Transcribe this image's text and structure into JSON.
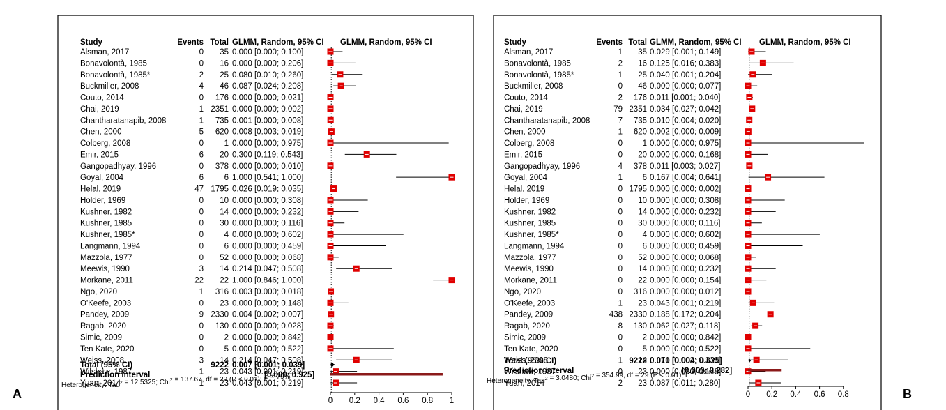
{
  "panels": [
    {
      "label": "A",
      "headers": {
        "study": "Study",
        "events": "Events",
        "total": "Total",
        "ci": "GLMM, Random, 95% CI",
        "plot": "GLMM, Random, 95% CI"
      },
      "studies": [
        {
          "study": "Alsman, 2017",
          "events": "0",
          "total": "35",
          "ci_text": "0.000 [0.000; 0.100]",
          "est": 0.0,
          "lo": 0.0,
          "hi": 0.1
        },
        {
          "study": "Bonavolontà, 1985",
          "events": "0",
          "total": "16",
          "ci_text": "0.000 [0.000; 0.206]",
          "est": 0.0,
          "lo": 0.0,
          "hi": 0.206
        },
        {
          "study": "Bonavolontà, 1985*",
          "events": "2",
          "total": "25",
          "ci_text": "0.080 [0.010; 0.260]",
          "est": 0.08,
          "lo": 0.01,
          "hi": 0.26
        },
        {
          "study": "Buckmiller, 2008",
          "events": "4",
          "total": "46",
          "ci_text": "0.087 [0.024; 0.208]",
          "est": 0.087,
          "lo": 0.024,
          "hi": 0.208
        },
        {
          "study": "Couto, 2014",
          "events": "0",
          "total": "176",
          "ci_text": "0.000 [0.000; 0.021]",
          "est": 0.0,
          "lo": 0.0,
          "hi": 0.021
        },
        {
          "study": "Chai, 2019",
          "events": "1",
          "total": "2351",
          "ci_text": "0.000 [0.000; 0.002]",
          "est": 0.0,
          "lo": 0.0,
          "hi": 0.002
        },
        {
          "study": "Chantharatanapib, 2008",
          "events": "1",
          "total": "735",
          "ci_text": "0.001 [0.000; 0.008]",
          "est": 0.001,
          "lo": 0.0,
          "hi": 0.008
        },
        {
          "study": "Chen, 2000",
          "events": "5",
          "total": "620",
          "ci_text": "0.008 [0.003; 0.019]",
          "est": 0.008,
          "lo": 0.003,
          "hi": 0.019
        },
        {
          "study": "Colberg, 2008",
          "events": "0",
          "total": "1",
          "ci_text": "0.000 [0.000; 0.975]",
          "est": 0.0,
          "lo": 0.0,
          "hi": 0.975
        },
        {
          "study": "Emir, 2015",
          "events": "6",
          "total": "20",
          "ci_text": "0.300 [0.119; 0.543]",
          "est": 0.3,
          "lo": 0.119,
          "hi": 0.543
        },
        {
          "study": "Gangopadhyay, 1996",
          "events": "0",
          "total": "378",
          "ci_text": "0.000 [0.000; 0.010]",
          "est": 0.0,
          "lo": 0.0,
          "hi": 0.01
        },
        {
          "study": "Goyal, 2004",
          "events": "6",
          "total": "6",
          "ci_text": "1.000 [0.541; 1.000]",
          "est": 1.0,
          "lo": 0.541,
          "hi": 1.0
        },
        {
          "study": "Helal, 2019",
          "events": "47",
          "total": "1795",
          "ci_text": "0.026 [0.019; 0.035]",
          "est": 0.026,
          "lo": 0.019,
          "hi": 0.035
        },
        {
          "study": "Holder, 1969",
          "events": "0",
          "total": "10",
          "ci_text": "0.000 [0.000; 0.308]",
          "est": 0.0,
          "lo": 0.0,
          "hi": 0.308
        },
        {
          "study": "Kushner, 1982",
          "events": "0",
          "total": "14",
          "ci_text": "0.000 [0.000; 0.232]",
          "est": 0.0,
          "lo": 0.0,
          "hi": 0.232
        },
        {
          "study": "Kushner, 1985",
          "events": "0",
          "total": "30",
          "ci_text": "0.000 [0.000; 0.116]",
          "est": 0.0,
          "lo": 0.0,
          "hi": 0.116
        },
        {
          "study": "Kushner, 1985*",
          "events": "0",
          "total": "4",
          "ci_text": "0.000 [0.000; 0.602]",
          "est": 0.0,
          "lo": 0.0,
          "hi": 0.602
        },
        {
          "study": "Langmann, 1994",
          "events": "0",
          "total": "6",
          "ci_text": "0.000 [0.000; 0.459]",
          "est": 0.0,
          "lo": 0.0,
          "hi": 0.459
        },
        {
          "study": "Mazzola, 1977",
          "events": "0",
          "total": "52",
          "ci_text": "0.000 [0.000; 0.068]",
          "est": 0.0,
          "lo": 0.0,
          "hi": 0.068
        },
        {
          "study": "Meewis, 1990",
          "events": "3",
          "total": "14",
          "ci_text": "0.214 [0.047; 0.508]",
          "est": 0.214,
          "lo": 0.047,
          "hi": 0.508
        },
        {
          "study": "Morkane, 2011",
          "events": "22",
          "total": "22",
          "ci_text": "1.000 [0.846; 1.000]",
          "est": 1.0,
          "lo": 0.846,
          "hi": 1.0
        },
        {
          "study": "Ngo, 2020",
          "events": "1",
          "total": "316",
          "ci_text": "0.003 [0.000; 0.018]",
          "est": 0.003,
          "lo": 0.0,
          "hi": 0.018
        },
        {
          "study": "O'Keefe, 2003",
          "events": "0",
          "total": "23",
          "ci_text": "0.000 [0.000; 0.148]",
          "est": 0.0,
          "lo": 0.0,
          "hi": 0.148
        },
        {
          "study": "Pandey, 2009",
          "events": "9",
          "total": "2330",
          "ci_text": "0.004 [0.002; 0.007]",
          "est": 0.004,
          "lo": 0.002,
          "hi": 0.007
        },
        {
          "study": "Ragab, 2020",
          "events": "0",
          "total": "130",
          "ci_text": "0.000 [0.000; 0.028]",
          "est": 0.0,
          "lo": 0.0,
          "hi": 0.028
        },
        {
          "study": "Simic, 2009",
          "events": "0",
          "total": "2",
          "ci_text": "0.000 [0.000; 0.842]",
          "est": 0.0,
          "lo": 0.0,
          "hi": 0.842
        },
        {
          "study": "Ten Kate, 2020",
          "events": "0",
          "total": "5",
          "ci_text": "0.000 [0.000; 0.522]",
          "est": 0.0,
          "lo": 0.0,
          "hi": 0.522
        },
        {
          "study": "Weiss, 2008",
          "events": "3",
          "total": "14",
          "ci_text": "0.214 [0.047; 0.508]",
          "est": 0.214,
          "lo": 0.047,
          "hi": 0.508
        },
        {
          "study": "Wilshaw, 1987",
          "events": "1",
          "total": "23",
          "ci_text": "0.043 [0.001; 0.219]",
          "est": 0.043,
          "lo": 0.001,
          "hi": 0.219
        },
        {
          "study": "Yuan, 2014",
          "events": "1",
          "total": "23",
          "ci_text": "0.043 [0.001; 0.219]",
          "est": 0.043,
          "lo": 0.001,
          "hi": 0.219
        }
      ],
      "total": {
        "label": "Total (95% CI)",
        "total": "9222",
        "ci_text": "0.007 [0.001; 0.039]",
        "est": 0.007,
        "lo": 0.001,
        "hi": 0.039
      },
      "prediction": {
        "label": "Prediction interval",
        "ci_text": "[0.000; 0.925]",
        "lo": 0.0,
        "hi": 0.925
      },
      "heterogeneity": {
        "prefix": "Heterogeneity: Tau",
        "tau_val": " = 12.5325; Chi",
        "chi_val": " = 137.67, df = 29 (P < 0.01); I",
        "i_val": " = 79%",
        "sup": "2"
      },
      "ticks": [
        "0",
        "0.2",
        "0.4",
        "0.6",
        "0.8",
        "1"
      ],
      "tick_values": [
        0,
        0.2,
        0.4,
        0.6,
        0.8,
        1.0
      ]
    },
    {
      "label": "B",
      "headers": {
        "study": "Study",
        "events": "Events",
        "total": "Total",
        "ci": "GLMM, Random, 95% CI",
        "plot": "GLMM, Random, 95% CI"
      },
      "studies": [
        {
          "study": "Alsman, 2017",
          "events": "1",
          "total": "35",
          "ci_text": "0.029 [0.001; 0.149]",
          "est": 0.029,
          "lo": 0.001,
          "hi": 0.149
        },
        {
          "study": "Bonavolontà, 1985",
          "events": "2",
          "total": "16",
          "ci_text": "0.125 [0.016; 0.383]",
          "est": 0.125,
          "lo": 0.016,
          "hi": 0.383
        },
        {
          "study": "Bonavolontà, 1985*",
          "events": "1",
          "total": "25",
          "ci_text": "0.040 [0.001; 0.204]",
          "est": 0.04,
          "lo": 0.001,
          "hi": 0.204
        },
        {
          "study": "Buckmiller, 2008",
          "events": "0",
          "total": "46",
          "ci_text": "0.000 [0.000; 0.077]",
          "est": 0.0,
          "lo": 0.0,
          "hi": 0.077
        },
        {
          "study": "Couto, 2014",
          "events": "2",
          "total": "176",
          "ci_text": "0.011 [0.001; 0.040]",
          "est": 0.011,
          "lo": 0.001,
          "hi": 0.04
        },
        {
          "study": "Chai, 2019",
          "events": "79",
          "total": "2351",
          "ci_text": "0.034 [0.027; 0.042]",
          "est": 0.034,
          "lo": 0.027,
          "hi": 0.042
        },
        {
          "study": "Chantharatanapib, 2008",
          "events": "7",
          "total": "735",
          "ci_text": "0.010 [0.004; 0.020]",
          "est": 0.01,
          "lo": 0.004,
          "hi": 0.02
        },
        {
          "study": "Chen, 2000",
          "events": "1",
          "total": "620",
          "ci_text": "0.002 [0.000; 0.009]",
          "est": 0.002,
          "lo": 0.0,
          "hi": 0.009
        },
        {
          "study": "Colberg, 2008",
          "events": "0",
          "total": "1",
          "ci_text": "0.000 [0.000; 0.975]",
          "est": 0.0,
          "lo": 0.0,
          "hi": 0.975
        },
        {
          "study": "Emir, 2015",
          "events": "0",
          "total": "20",
          "ci_text": "0.000 [0.000; 0.168]",
          "est": 0.0,
          "lo": 0.0,
          "hi": 0.168
        },
        {
          "study": "Gangopadhyay, 1996",
          "events": "4",
          "total": "378",
          "ci_text": "0.011 [0.003; 0.027]",
          "est": 0.011,
          "lo": 0.003,
          "hi": 0.027
        },
        {
          "study": "Goyal, 2004",
          "events": "1",
          "total": "6",
          "ci_text": "0.167 [0.004; 0.641]",
          "est": 0.167,
          "lo": 0.004,
          "hi": 0.641
        },
        {
          "study": "Helal, 2019",
          "events": "0",
          "total": "1795",
          "ci_text": "0.000 [0.000; 0.002]",
          "est": 0.0,
          "lo": 0.0,
          "hi": 0.002
        },
        {
          "study": "Holder, 1969",
          "events": "0",
          "total": "10",
          "ci_text": "0.000 [0.000; 0.308]",
          "est": 0.0,
          "lo": 0.0,
          "hi": 0.308
        },
        {
          "study": "Kushner, 1982",
          "events": "0",
          "total": "14",
          "ci_text": "0.000 [0.000; 0.232]",
          "est": 0.0,
          "lo": 0.0,
          "hi": 0.232
        },
        {
          "study": "Kushner, 1985",
          "events": "0",
          "total": "30",
          "ci_text": "0.000 [0.000; 0.116]",
          "est": 0.0,
          "lo": 0.0,
          "hi": 0.116
        },
        {
          "study": "Kushner, 1985*",
          "events": "0",
          "total": "4",
          "ci_text": "0.000 [0.000; 0.602]",
          "est": 0.0,
          "lo": 0.0,
          "hi": 0.602
        },
        {
          "study": "Langmann, 1994",
          "events": "0",
          "total": "6",
          "ci_text": "0.000 [0.000; 0.459]",
          "est": 0.0,
          "lo": 0.0,
          "hi": 0.459
        },
        {
          "study": "Mazzola, 1977",
          "events": "0",
          "total": "52",
          "ci_text": "0.000 [0.000; 0.068]",
          "est": 0.0,
          "lo": 0.0,
          "hi": 0.068
        },
        {
          "study": "Meewis, 1990",
          "events": "0",
          "total": "14",
          "ci_text": "0.000 [0.000; 0.232]",
          "est": 0.0,
          "lo": 0.0,
          "hi": 0.232
        },
        {
          "study": "Morkane, 2011",
          "events": "0",
          "total": "22",
          "ci_text": "0.000 [0.000; 0.154]",
          "est": 0.0,
          "lo": 0.0,
          "hi": 0.154
        },
        {
          "study": "Ngo, 2020",
          "events": "0",
          "total": "316",
          "ci_text": "0.000 [0.000; 0.012]",
          "est": 0.0,
          "lo": 0.0,
          "hi": 0.012
        },
        {
          "study": "O'Keefe, 2003",
          "events": "1",
          "total": "23",
          "ci_text": "0.043 [0.001; 0.219]",
          "est": 0.043,
          "lo": 0.001,
          "hi": 0.219
        },
        {
          "study": "Pandey, 2009",
          "events": "438",
          "total": "2330",
          "ci_text": "0.188 [0.172; 0.204]",
          "est": 0.188,
          "lo": 0.172,
          "hi": 0.204
        },
        {
          "study": "Ragab, 2020",
          "events": "8",
          "total": "130",
          "ci_text": "0.062 [0.027; 0.118]",
          "est": 0.062,
          "lo": 0.027,
          "hi": 0.118
        },
        {
          "study": "Simic, 2009",
          "events": "0",
          "total": "2",
          "ci_text": "0.000 [0.000; 0.842]",
          "est": 0.0,
          "lo": 0.0,
          "hi": 0.842
        },
        {
          "study": "Ten Kate, 2020",
          "events": "0",
          "total": "5",
          "ci_text": "0.000 [0.000; 0.522]",
          "est": 0.0,
          "lo": 0.0,
          "hi": 0.522
        },
        {
          "study": "Weiss, 2008",
          "events": "1",
          "total": "14",
          "ci_text": "0.071 [0.002; 0.339]",
          "est": 0.071,
          "lo": 0.002,
          "hi": 0.339
        },
        {
          "study": "Wilshaw, 1987",
          "events": "0",
          "total": "23",
          "ci_text": "0.000 [0.000; 0.148]",
          "est": 0.0,
          "lo": 0.0,
          "hi": 0.148
        },
        {
          "study": "Yuan, 2014",
          "events": "2",
          "total": "23",
          "ci_text": "0.087 [0.011; 0.280]",
          "est": 0.087,
          "lo": 0.011,
          "hi": 0.28
        }
      ],
      "total": {
        "label": "Total (95% CI)",
        "total": "9222",
        "ci_text": "0.010 [0.004; 0.025]",
        "est": 0.01,
        "lo": 0.004,
        "hi": 0.025
      },
      "prediction": {
        "label": "Prediction interval",
        "ci_text": "[0.000; 0.282]",
        "lo": 0.0,
        "hi": 0.282
      },
      "heterogeneity": {
        "prefix": "Heterogeneity: Tau",
        "tau_val": " = 3.0480; Chi",
        "chi_val": " = 354.99, df = 29 (P < 0.01); I",
        "i_val": " = 92%",
        "sup": "2"
      },
      "ticks": [
        "0",
        "0.2",
        "0.4",
        "0.6",
        "0.8"
      ],
      "tick_values": [
        0,
        0.2,
        0.4,
        0.6,
        0.8
      ]
    }
  ],
  "colors": {
    "marker": "#e00000",
    "prediction_bar": "#8b1a1a",
    "line": "#000000"
  },
  "chart_data": [
    {
      "type": "forest",
      "panel": "A",
      "xlim": [
        0,
        1
      ],
      "reference_line": 0.007,
      "xticks": [
        0,
        0.2,
        0.4,
        0.6,
        0.8,
        1.0
      ]
    },
    {
      "type": "forest",
      "panel": "B",
      "xlim": [
        0,
        1
      ],
      "reference_line": 0.01,
      "xticks": [
        0,
        0.2,
        0.4,
        0.6,
        0.8
      ]
    }
  ]
}
